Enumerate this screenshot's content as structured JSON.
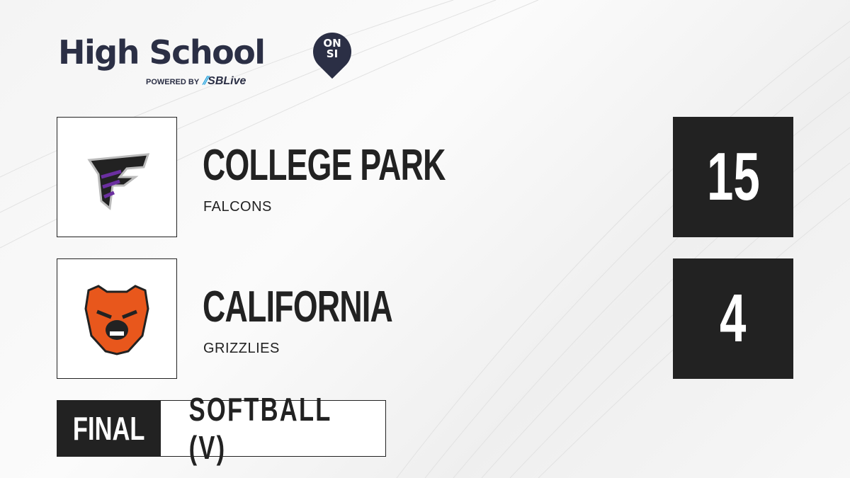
{
  "brand": {
    "title": "High School",
    "badge_line1": "ON",
    "badge_line2": "SI",
    "powered_by": "POWERED BY",
    "partner": "SBLive",
    "partner_color": "#2aa6e0",
    "color": "#2b2f45"
  },
  "teams": [
    {
      "name": "COLLEGE PARK",
      "mascot": "FALCONS",
      "score": "15",
      "logo": "falcon-logo",
      "color": "#6b2fa0"
    },
    {
      "name": "CALIFORNIA",
      "mascot": "GRIZZLIES",
      "score": "4",
      "logo": "grizzly-logo",
      "color": "#e8571c"
    }
  ],
  "status": {
    "label": "FINAL",
    "sport": "SOFTBALL (V)"
  }
}
